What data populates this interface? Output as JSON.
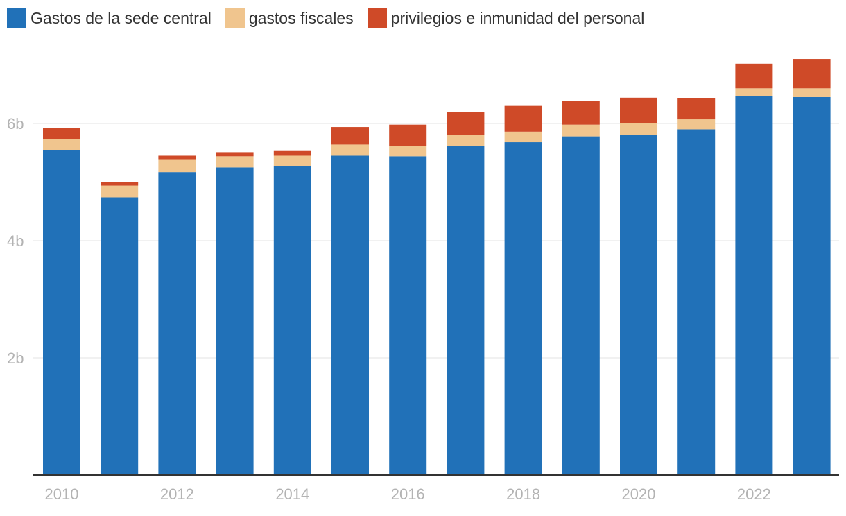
{
  "legend": {
    "items": [
      {
        "label": "Gastos de la sede central",
        "color": "#2171b8"
      },
      {
        "label": "gastos fiscales",
        "color": "#f0c58e"
      },
      {
        "label": "privilegios e inmunidad del personal",
        "color": "#cf4a28"
      }
    ]
  },
  "chart_data": {
    "type": "bar",
    "stacked": true,
    "categories": [
      "2010",
      "2011",
      "2012",
      "2013",
      "2014",
      "2015",
      "2016",
      "2017",
      "2018",
      "2019",
      "2020",
      "2021",
      "2022",
      "2023"
    ],
    "series": [
      {
        "name": "Gastos de la sede central",
        "color": "#2171b8",
        "values": [
          5.55,
          4.74,
          5.17,
          5.25,
          5.27,
          5.45,
          5.44,
          5.62,
          5.68,
          5.78,
          5.81,
          5.9,
          6.47,
          6.45
        ]
      },
      {
        "name": "gastos fiscales",
        "color": "#f0c58e",
        "values": [
          0.18,
          0.2,
          0.22,
          0.19,
          0.18,
          0.19,
          0.18,
          0.18,
          0.18,
          0.2,
          0.19,
          0.17,
          0.13,
          0.15
        ]
      },
      {
        "name": "privilegios e inmunidad del personal",
        "color": "#cf4a28",
        "values": [
          0.19,
          0.06,
          0.06,
          0.07,
          0.08,
          0.3,
          0.36,
          0.4,
          0.44,
          0.4,
          0.44,
          0.36,
          0.42,
          0.5
        ]
      }
    ],
    "y_ticks": [
      {
        "value": 2,
        "label": "2b"
      },
      {
        "value": 4,
        "label": "4b"
      },
      {
        "value": 6,
        "label": "6b"
      }
    ],
    "x_tick_labels": [
      "2010",
      "2012",
      "2014",
      "2016",
      "2018",
      "2020",
      "2022"
    ],
    "ylim": [
      0,
      7.2
    ],
    "grid": true,
    "legend_position": "top-left",
    "title": "",
    "xlabel": "",
    "ylabel": ""
  }
}
